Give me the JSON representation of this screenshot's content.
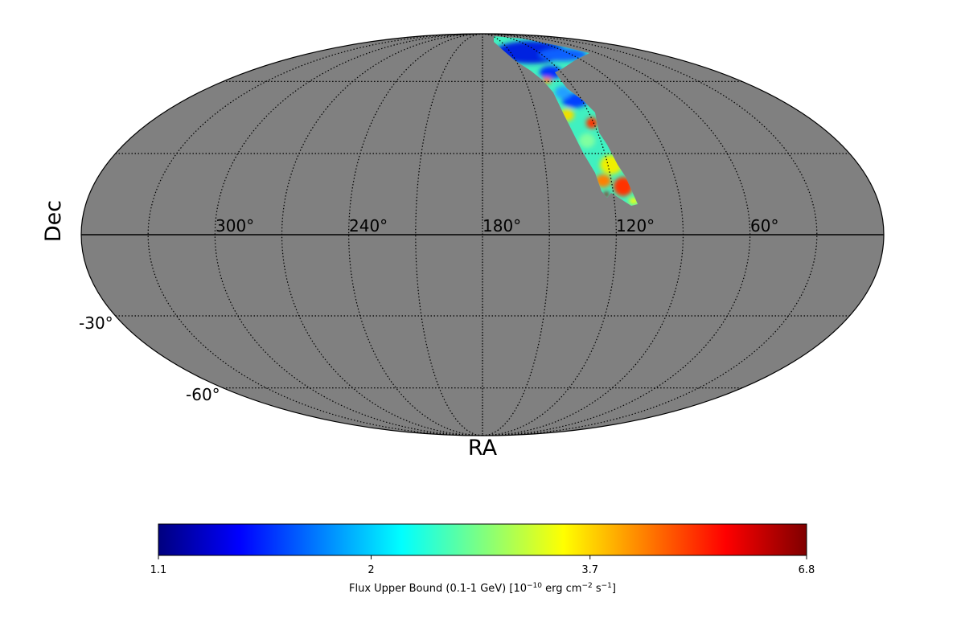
{
  "chart_data": {
    "type": "heatmap",
    "projection": "mollweide",
    "xlabel": "RA",
    "ylabel": "Dec",
    "ra_tick_labels": [
      "300°",
      "240°",
      "180°",
      "120°",
      "60°"
    ],
    "ra_ticks": [
      300,
      240,
      180,
      120,
      60
    ],
    "dec_tick_labels": [
      "-30°",
      "-60°"
    ],
    "dec_ticks": [
      -30,
      -60
    ],
    "grid": true,
    "background_color": "#808080",
    "colormap": "jet",
    "colorbar": {
      "orientation": "horizontal",
      "placement": "bottom",
      "scale": "log",
      "range": [
        1.1,
        6.8
      ],
      "ticks": [
        1.1,
        2,
        3.7,
        6.8
      ],
      "tick_labels": [
        "1.1",
        "2",
        "3.7",
        "6.8"
      ],
      "label_main": "Flux Upper Bound (0.1-1 GeV) [10",
      "label_exp1": "−10",
      "label_mid": " erg cm",
      "label_exp2": "−2",
      "label_mid2": " s",
      "label_exp3": "−1",
      "label_end": "]"
    }
  }
}
